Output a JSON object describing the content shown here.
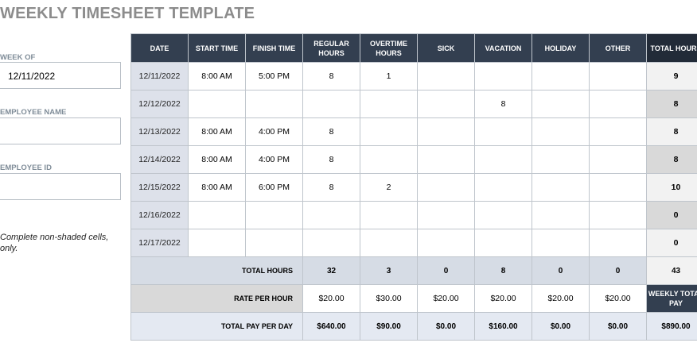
{
  "title": "WEEKLY TIMESHEET TEMPLATE",
  "sidebar": {
    "week_of_label": "WEEK OF",
    "week_of_value": "12/11/2022",
    "employee_name_label": "EMPLOYEE NAME",
    "employee_name_value": "",
    "employee_id_label": "EMPLOYEE ID",
    "employee_id_value": "",
    "note": "Complete non-shaded cells, only."
  },
  "table": {
    "headers": [
      "DATE",
      "START TIME",
      "FINISH TIME",
      "REGULAR HOURS",
      "OVERTIME HOURS",
      "SICK",
      "VACATION",
      "HOLIDAY",
      "OTHER",
      "TOTAL HOURS"
    ],
    "rows": [
      {
        "date": "12/11/2022",
        "start": "8:00 AM",
        "finish": "5:00 PM",
        "regular": "8",
        "overtime": "1",
        "sick": "",
        "vacation": "",
        "holiday": "",
        "other": "",
        "total": "9"
      },
      {
        "date": "12/12/2022",
        "start": "",
        "finish": "",
        "regular": "",
        "overtime": "",
        "sick": "",
        "vacation": "8",
        "holiday": "",
        "other": "",
        "total": "8"
      },
      {
        "date": "12/13/2022",
        "start": "8:00 AM",
        "finish": "4:00 PM",
        "regular": "8",
        "overtime": "",
        "sick": "",
        "vacation": "",
        "holiday": "",
        "other": "",
        "total": "8"
      },
      {
        "date": "12/14/2022",
        "start": "8:00 AM",
        "finish": "4:00 PM",
        "regular": "8",
        "overtime": "",
        "sick": "",
        "vacation": "",
        "holiday": "",
        "other": "",
        "total": "8"
      },
      {
        "date": "12/15/2022",
        "start": "8:00 AM",
        "finish": "6:00 PM",
        "regular": "8",
        "overtime": "2",
        "sick": "",
        "vacation": "",
        "holiday": "",
        "other": "",
        "total": "10"
      },
      {
        "date": "12/16/2022",
        "start": "",
        "finish": "",
        "regular": "",
        "overtime": "",
        "sick": "",
        "vacation": "",
        "holiday": "",
        "other": "",
        "total": "0"
      },
      {
        "date": "12/17/2022",
        "start": "",
        "finish": "",
        "regular": "",
        "overtime": "",
        "sick": "",
        "vacation": "",
        "holiday": "",
        "other": "",
        "total": "0"
      }
    ],
    "total_hours": {
      "label": "TOTAL HOURS",
      "regular": "32",
      "overtime": "3",
      "sick": "0",
      "vacation": "8",
      "holiday": "0",
      "other": "0",
      "total": "43"
    },
    "rate_per_hour": {
      "label": "RATE PER HOUR",
      "regular": "$20.00",
      "overtime": "$30.00",
      "sick": "$20.00",
      "vacation": "$20.00",
      "holiday": "$20.00",
      "other": "$20.00",
      "weekly_pay_label": "WEEKLY TOTAL PAY"
    },
    "total_pay_per_day": {
      "label": "TOTAL PAY PER DAY",
      "regular": "$640.00",
      "overtime": "$90.00",
      "sick": "$0.00",
      "vacation": "$160.00",
      "holiday": "$0.00",
      "other": "$0.00",
      "total": "$890.00"
    }
  }
}
